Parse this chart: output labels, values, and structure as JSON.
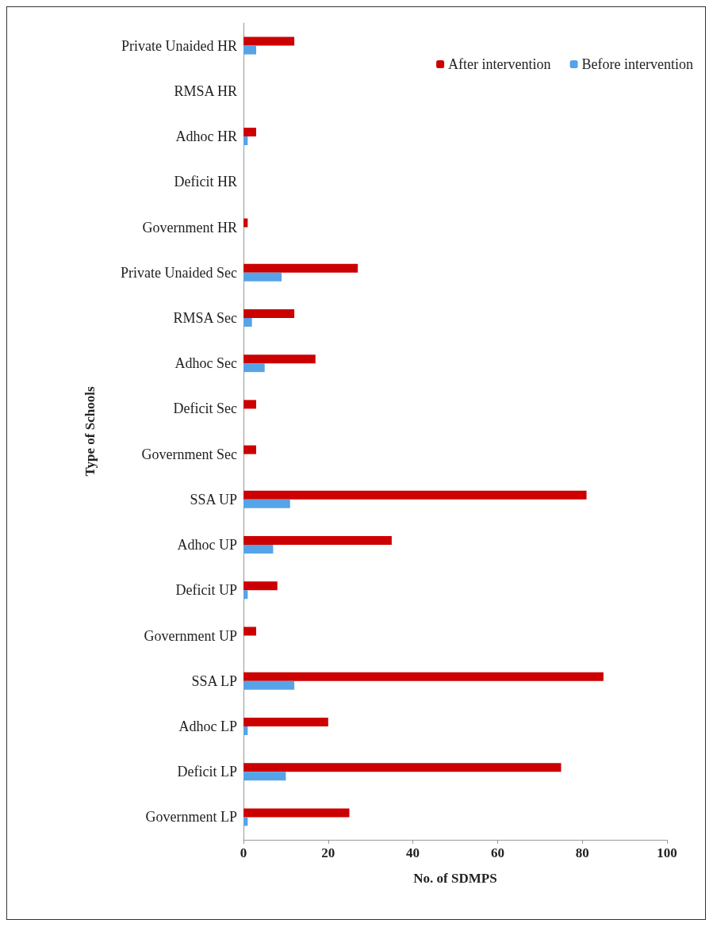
{
  "chart_data": {
    "type": "bar",
    "orientation": "horizontal",
    "xlabel": "No. of SDMPS",
    "ylabel": "Type of Schools",
    "categories": [
      "Private Unaided HR",
      "RMSA HR",
      "Adhoc HR",
      "Deficit HR",
      "Government HR",
      "Private Unaided Sec",
      "RMSA Sec",
      "Adhoc Sec",
      "Deficit Sec",
      "Government Sec",
      "SSA UP",
      "Adhoc UP",
      "Deficit UP",
      "Government UP",
      "SSA LP",
      "Adhoc LP",
      "Deficit LP",
      "Government LP"
    ],
    "series": [
      {
        "name": "After intervention",
        "color": "#cc0000",
        "values": [
          12,
          0,
          3,
          0,
          1,
          27,
          12,
          17,
          3,
          3,
          81,
          35,
          8,
          3,
          85,
          20,
          75,
          25
        ]
      },
      {
        "name": "Before intervention",
        "color": "#56a3e8",
        "values": [
          3,
          0,
          1,
          0,
          0,
          9,
          2,
          5,
          0,
          0,
          11,
          7,
          1,
          0,
          12,
          1,
          10,
          1
        ]
      }
    ],
    "xlim": [
      0,
      100
    ],
    "xticks": [
      0,
      20,
      40,
      60,
      80,
      100
    ],
    "grid": false,
    "legend": "top right"
  }
}
